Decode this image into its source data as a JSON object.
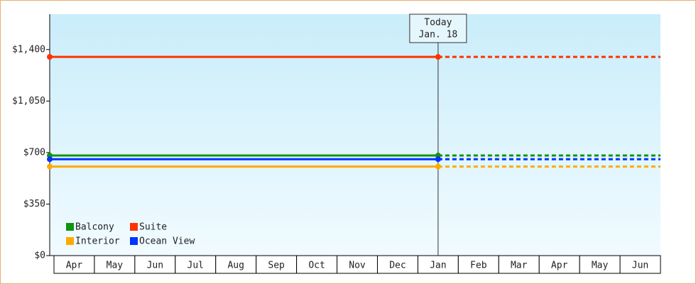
{
  "chart_data": {
    "type": "line",
    "categories": [
      "Apr",
      "May",
      "Jun",
      "Jul",
      "Aug",
      "Sep",
      "Oct",
      "Nov",
      "Dec",
      "Jan",
      "Feb",
      "Mar",
      "Apr",
      "May",
      "Jun"
    ],
    "series": [
      {
        "name": "Balcony",
        "color": "#129312",
        "values": [
          680,
          680,
          680,
          680,
          680,
          680,
          680,
          680,
          680,
          680,
          680,
          680,
          680,
          680,
          680
        ]
      },
      {
        "name": "Suite",
        "color": "#ff3300",
        "values": [
          1350,
          1350,
          1350,
          1350,
          1350,
          1350,
          1350,
          1350,
          1350,
          1350,
          1350,
          1350,
          1350,
          1350,
          1350
        ]
      },
      {
        "name": "Interior",
        "color": "#ffaa00",
        "values": [
          605,
          605,
          605,
          605,
          605,
          605,
          605,
          605,
          605,
          605,
          605,
          605,
          605,
          605,
          605
        ]
      },
      {
        "name": "Ocean View",
        "color": "#0033ff",
        "values": [
          655,
          655,
          655,
          655,
          655,
          655,
          655,
          655,
          655,
          655,
          655,
          655,
          655,
          655,
          655
        ]
      }
    ],
    "ylim": [
      0,
      1640
    ],
    "yticks": [
      {
        "value": 0,
        "label": "$0"
      },
      {
        "value": 350,
        "label": "$350"
      },
      {
        "value": 700,
        "label": "$700"
      },
      {
        "value": 1050,
        "label": "$1,050"
      },
      {
        "value": 1400,
        "label": "$1,400"
      }
    ],
    "annotation": {
      "lines": [
        "Today",
        "Jan. 18"
      ],
      "category_index": 9
    },
    "legend": "bottom-left"
  }
}
